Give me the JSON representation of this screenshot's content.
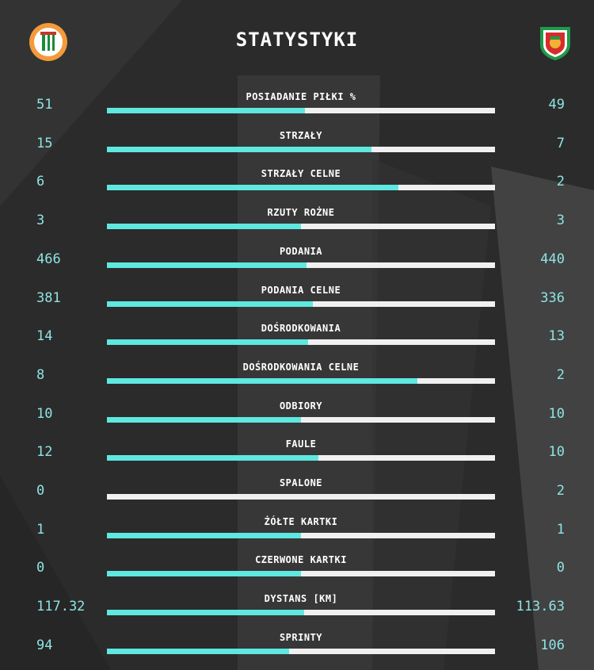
{
  "header": {
    "title": "STATYSTYKI",
    "home_logo": "zaglebie-lubin-crest-icon",
    "away_logo": "miedz-legnica-crest-icon"
  },
  "colors": {
    "background": "#2b2b2b",
    "bar_fill": "#5ee8e0",
    "bar_track": "#f0f0f0",
    "value_text": "#8fe3e3"
  },
  "stats": [
    {
      "label": "POSIADANIE PIŁKI %",
      "home": "51",
      "away": "49",
      "share": 0.51
    },
    {
      "label": "STRZAŁY",
      "home": "15",
      "away": "7",
      "share": 0.682
    },
    {
      "label": "STRZAŁY CELNE",
      "home": "6",
      "away": "2",
      "share": 0.75
    },
    {
      "label": "RZUTY ROŻNE",
      "home": "3",
      "away": "3",
      "share": 0.5
    },
    {
      "label": "PODANIA",
      "home": "466",
      "away": "440",
      "share": 0.514
    },
    {
      "label": "PODANIA CELNE",
      "home": "381",
      "away": "336",
      "share": 0.531
    },
    {
      "label": "DOŚRODKOWANIA",
      "home": "14",
      "away": "13",
      "share": 0.519
    },
    {
      "label": "DOŚRODKOWANIA CELNE",
      "home": "8",
      "away": "2",
      "share": 0.8
    },
    {
      "label": "ODBIORY",
      "home": "10",
      "away": "10",
      "share": 0.5
    },
    {
      "label": "FAULE",
      "home": "12",
      "away": "10",
      "share": 0.545
    },
    {
      "label": "SPALONE",
      "home": "0",
      "away": "2",
      "share": 0.0
    },
    {
      "label": "ŻÓŁTE KARTKI",
      "home": "1",
      "away": "1",
      "share": 0.5
    },
    {
      "label": "CZERWONE KARTKI",
      "home": "0",
      "away": "0",
      "share": 0.5
    },
    {
      "label": "DYSTANS [KM]",
      "home": "117.32",
      "away": "113.63",
      "share": 0.508
    },
    {
      "label": "SPRINTY",
      "home": "94",
      "away": "106",
      "share": 0.47
    }
  ]
}
